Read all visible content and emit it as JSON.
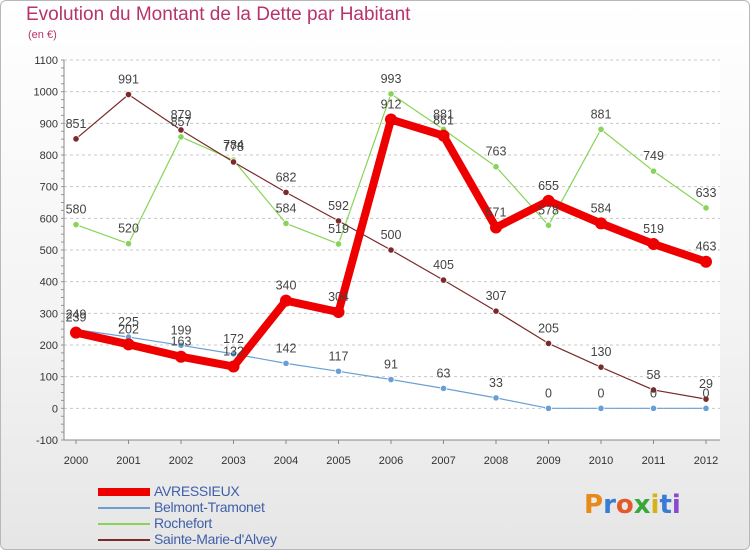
{
  "title": "Evolution du Montant de la Dette par Habitant",
  "subtitle": "(en €)",
  "logo_text": "Proxiti",
  "chart_data": {
    "type": "line",
    "title": "Evolution du Montant de la Dette par Habitant",
    "subtitle": "(en €)",
    "x": [
      "2000",
      "2001",
      "2002",
      "2003",
      "2004",
      "2005",
      "2006",
      "2007",
      "2008",
      "2009",
      "2010",
      "2011",
      "2012"
    ],
    "yticks": [
      -100,
      0,
      100,
      200,
      300,
      400,
      500,
      600,
      700,
      800,
      900,
      1000,
      1100
    ],
    "ylim": [
      -100,
      1100
    ],
    "grid": "horizontal-dashed",
    "legend_position": "bottom-left",
    "series": [
      {
        "name": "AVRESSIEUX",
        "color": "#ee0000",
        "values": [
          239,
          202,
          163,
          132,
          340,
          304,
          912,
          861,
          571,
          655,
          584,
          519,
          463
        ]
      },
      {
        "name": "Belmont-Tramonet",
        "color": "#6a9fd4",
        "values": [
          249,
          225,
          199,
          172,
          142,
          117,
          91,
          63,
          33,
          0,
          0,
          0,
          0
        ]
      },
      {
        "name": "Rochefort",
        "color": "#88d35a",
        "values": [
          580,
          520,
          857,
          784,
          584,
          519,
          993,
          881,
          763,
          578,
          881,
          749,
          633
        ]
      },
      {
        "name": "Sainte-Marie-d'Alvey",
        "color": "#7a2a2a",
        "values": [
          851,
          991,
          879,
          778,
          682,
          592,
          500,
          405,
          307,
          205,
          130,
          58,
          29
        ]
      }
    ]
  }
}
